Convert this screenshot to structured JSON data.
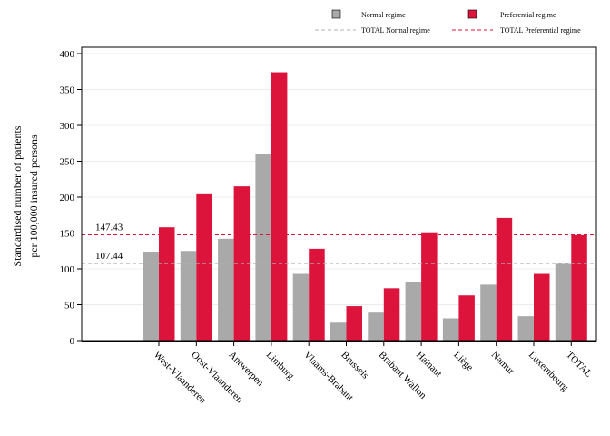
{
  "chart_data": {
    "type": "bar",
    "ylabel": "Standardised number of patients",
    "ylabel_line2": "per 100,000 insured persons",
    "ylim": [
      0,
      400
    ],
    "yticks": [
      0,
      50,
      100,
      150,
      200,
      250,
      300,
      350,
      400
    ],
    "grid": true,
    "legend_position": "top-right",
    "categories": [
      "West-Vlaanderen",
      "Oost-Vlaanderen",
      "Antwerpen",
      "Limburg",
      "Vlaams-Brabant",
      "Brussels",
      "Brabant Wallon",
      "Hainaut",
      "Liège",
      "Namur",
      "Luxembourg",
      "TOTAL"
    ],
    "series": [
      {
        "name": "Normal regime",
        "color": "#a9a9a9",
        "values": [
          124,
          125,
          142,
          260,
          93,
          25,
          39,
          82,
          31,
          78,
          34,
          107
        ]
      },
      {
        "name": "Preferential regime",
        "color": "#dc143c",
        "values": [
          158,
          204,
          215,
          374,
          128,
          48,
          73,
          151,
          63,
          171,
          93,
          147
        ]
      }
    ],
    "reference_lines": [
      {
        "name": "TOTAL Normal regime",
        "value": 107.44,
        "label": "107.44",
        "color": "#b0b0b0"
      },
      {
        "name": "TOTAL Preferential regime",
        "value": 147.43,
        "label": "147.43",
        "color": "#dc143c"
      }
    ]
  }
}
